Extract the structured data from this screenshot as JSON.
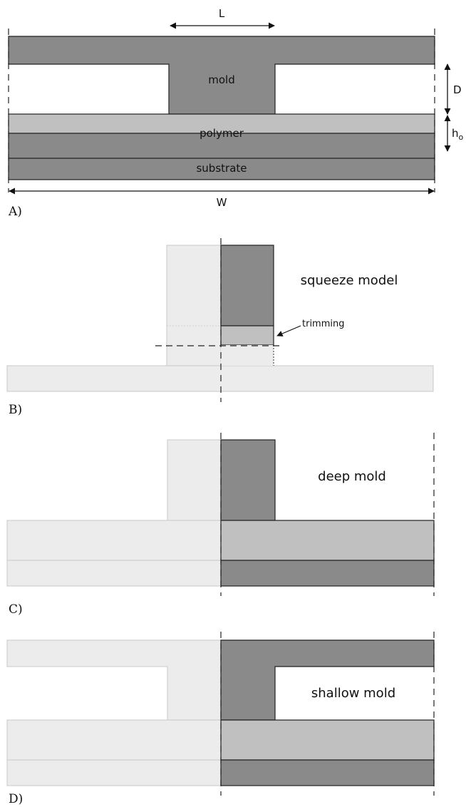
{
  "panel_a": {
    "panel_label": "A)",
    "dim_L": "L",
    "dim_D": "D",
    "dim_h": "h",
    "dim_h_sub": "o",
    "dim_W": "W",
    "mold_label": "mold",
    "polymer_label": "polymer",
    "substrate_label": "substrate"
  },
  "panel_b": {
    "panel_label": "B)",
    "title": "squeeze model",
    "trimming_label": "trimming"
  },
  "panel_c": {
    "panel_label": "C)",
    "title": "deep mold"
  },
  "panel_d": {
    "panel_label": "D)",
    "title": "shallow mold"
  },
  "colors": {
    "dark": "#8a8a8a",
    "mid": "#c0c0c0",
    "light": "#ececec",
    "outline": "#222222"
  }
}
